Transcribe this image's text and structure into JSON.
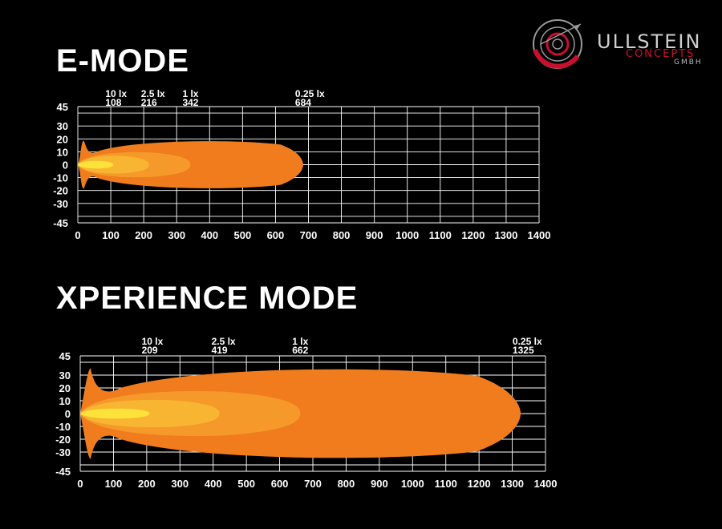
{
  "titles": {
    "e_mode": "E-MODE",
    "xperience_mode": "XPERIENCE MODE"
  },
  "logo": {
    "name": "ULLSTEIN",
    "sub": "CONCEPTS",
    "suffix": "GMBH",
    "accent": "#c8102e"
  },
  "colors": {
    "grid": "#ffffff",
    "level_0_25": "#f07c1e",
    "level_1": "#f59a2a",
    "level_2_5": "#f8b531",
    "level_10": "#fde23a"
  },
  "chart_data": [
    {
      "type": "area",
      "title": "E-MODE",
      "xlim": [
        0,
        1400
      ],
      "ylim": [
        -45,
        45
      ],
      "x_ticks": [
        0,
        100,
        200,
        300,
        400,
        500,
        600,
        700,
        800,
        900,
        1000,
        1100,
        1200,
        1300,
        1400
      ],
      "y_ticks": [
        45,
        30,
        20,
        10,
        0,
        -10,
        -20,
        -30,
        -45
      ],
      "grid": true,
      "series": [
        {
          "name": "0.25 lx",
          "reach": 684,
          "half_width": 19
        },
        {
          "name": "1 lx",
          "reach": 342,
          "half_width": 10
        },
        {
          "name": "2.5 lx",
          "reach": 216,
          "half_width": 7
        },
        {
          "name": "10 lx",
          "reach": 108,
          "half_width": 3
        }
      ],
      "annotations": [
        {
          "label": "10 lx",
          "value": "108",
          "x": 108
        },
        {
          "label": "2.5 lx",
          "value": "216",
          "x": 216
        },
        {
          "label": "1 lx",
          "value": "342",
          "x": 342
        },
        {
          "label": "0.25 lx",
          "value": "684",
          "x": 684
        }
      ]
    },
    {
      "type": "area",
      "title": "XPERIENCE MODE",
      "xlim": [
        0,
        1400
      ],
      "ylim": [
        -45,
        45
      ],
      "x_ticks": [
        0,
        100,
        200,
        300,
        400,
        500,
        600,
        700,
        800,
        900,
        1000,
        1100,
        1200,
        1300,
        1400
      ],
      "y_ticks": [
        45,
        30,
        20,
        10,
        0,
        -10,
        -20,
        -30,
        -45
      ],
      "grid": true,
      "series": [
        {
          "name": "0.25 lx",
          "reach": 1325,
          "half_width": 36
        },
        {
          "name": "1 lx",
          "reach": 662,
          "half_width": 18
        },
        {
          "name": "2.5 lx",
          "reach": 419,
          "half_width": 11
        },
        {
          "name": "10 lx",
          "reach": 209,
          "half_width": 4
        }
      ],
      "annotations": [
        {
          "label": "10 lx",
          "value": "209",
          "x": 209
        },
        {
          "label": "2.5 lx",
          "value": "419",
          "x": 419
        },
        {
          "label": "1 lx",
          "value": "662",
          "x": 662
        },
        {
          "label": "0.25 lx",
          "value": "1325",
          "x": 1325
        }
      ]
    }
  ]
}
